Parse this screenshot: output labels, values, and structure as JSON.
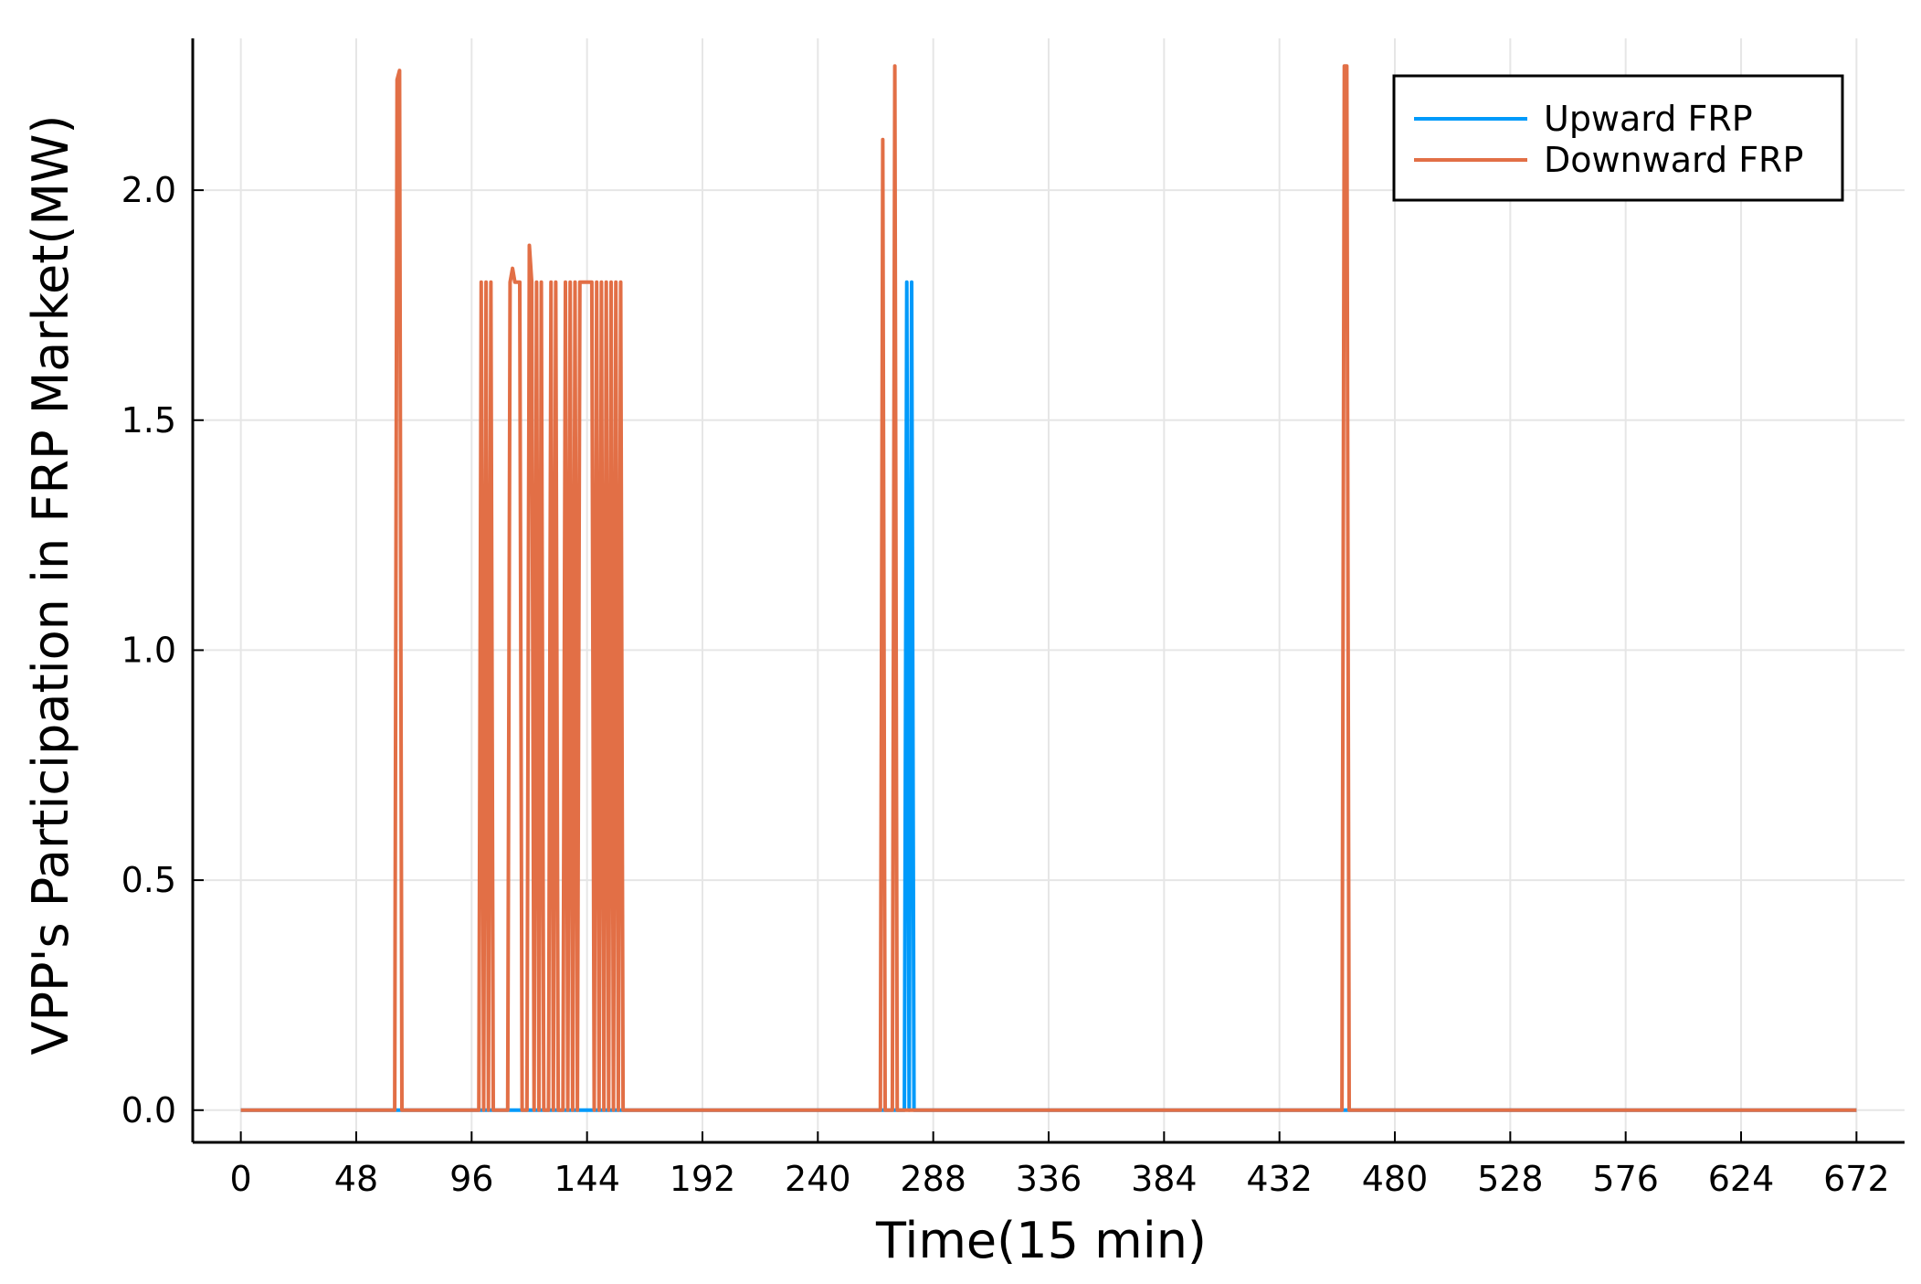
{
  "chart_data": {
    "type": "line",
    "xlabel": "Time(15 min)",
    "ylabel": "VPP's Participation in FRP Market(MW)",
    "xlim": [
      -20,
      692
    ],
    "ylim": [
      -0.07,
      2.33
    ],
    "xticks": [
      0,
      48,
      96,
      144,
      192,
      240,
      288,
      336,
      384,
      432,
      480,
      528,
      576,
      624,
      672
    ],
    "xtick_labels": [
      "0",
      "48",
      "96",
      "144",
      "192",
      "240",
      "288",
      "336",
      "384",
      "432",
      "480",
      "528",
      "576",
      "624",
      "672"
    ],
    "yticks": [
      0,
      0.5,
      1,
      1.5,
      2
    ],
    "ytick_labels": [
      "0.0",
      "0.5",
      "1.0",
      "1.5",
      "2.0"
    ],
    "grid": true,
    "legend_position": "top-right",
    "series": [
      {
        "name": "Upward FRP",
        "color": "#009AFA",
        "points": [
          [
            0,
            0
          ],
          [
            276,
            0
          ],
          [
            277,
            1.8
          ],
          [
            278,
            0
          ],
          [
            279,
            1.8
          ],
          [
            280,
            0
          ],
          [
            672,
            0
          ]
        ]
      },
      {
        "name": "Downward FRP",
        "color": "#E26F46",
        "points": [
          [
            0,
            0
          ],
          [
            64,
            0
          ],
          [
            65,
            2.24
          ],
          [
            66,
            2.26
          ],
          [
            67,
            0
          ],
          [
            99,
            0
          ],
          [
            100,
            1.8
          ],
          [
            101,
            0
          ],
          [
            102,
            1.8
          ],
          [
            103,
            0
          ],
          [
            104,
            1.8
          ],
          [
            105,
            0
          ],
          [
            111,
            0
          ],
          [
            112,
            1.8
          ],
          [
            113,
            1.83
          ],
          [
            114,
            1.8
          ],
          [
            116,
            1.8
          ],
          [
            117,
            0
          ],
          [
            119,
            0
          ],
          [
            120,
            1.88
          ],
          [
            121,
            1.8
          ],
          [
            122,
            0
          ],
          [
            123,
            1.8
          ],
          [
            124,
            0
          ],
          [
            125,
            1.8
          ],
          [
            126,
            0
          ],
          [
            128,
            0
          ],
          [
            129,
            1.8
          ],
          [
            130,
            0
          ],
          [
            131,
            1.8
          ],
          [
            132,
            0
          ],
          [
            134,
            0
          ],
          [
            135,
            1.8
          ],
          [
            136,
            0
          ],
          [
            137,
            1.8
          ],
          [
            138,
            0
          ],
          [
            139,
            1.8
          ],
          [
            140,
            0
          ],
          [
            141,
            1.8
          ],
          [
            146,
            1.8
          ],
          [
            147,
            0
          ],
          [
            148,
            1.8
          ],
          [
            149,
            0
          ],
          [
            150,
            1.8
          ],
          [
            151,
            0
          ],
          [
            152,
            1.8
          ],
          [
            153,
            0
          ],
          [
            154,
            1.8
          ],
          [
            155,
            0
          ],
          [
            156,
            1.8
          ],
          [
            157,
            0
          ],
          [
            158,
            1.8
          ],
          [
            159,
            0
          ],
          [
            266,
            0
          ],
          [
            267,
            2.11
          ],
          [
            268,
            0
          ],
          [
            271,
            0
          ],
          [
            272,
            2.27
          ],
          [
            273,
            0
          ],
          [
            458,
            0
          ],
          [
            459,
            2.27
          ],
          [
            460,
            2.27
          ],
          [
            461,
            0
          ],
          [
            672,
            0
          ]
        ]
      }
    ]
  }
}
